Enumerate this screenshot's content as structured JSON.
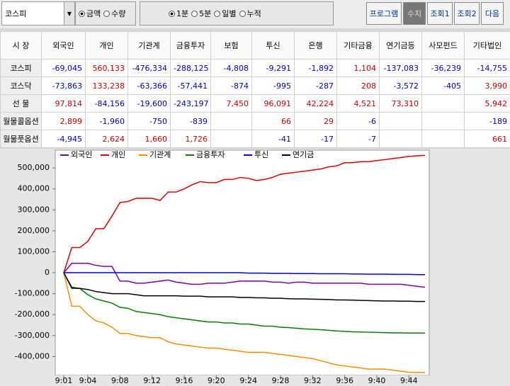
{
  "toolbar": {
    "market": "코스피",
    "unit_options": [
      "금액",
      "수량"
    ],
    "period_options": [
      "1분",
      "5분",
      "일별",
      "누적"
    ],
    "buttons": [
      "프로그램",
      "수치",
      "조회1",
      "조회2",
      "다음"
    ]
  },
  "table": {
    "header": [
      "시 장",
      "외국인",
      "개인",
      "기관계",
      "금융투자",
      "보험",
      "투신",
      "은행",
      "기타금융",
      "연기금등",
      "사모펀드",
      "기타법인"
    ],
    "rows": [
      [
        "코스피",
        "-69,045",
        "560,133",
        "-476,334",
        "-288,125",
        "-4,808",
        "-9,291",
        "-1,892",
        "1,104",
        "-137,083",
        "-36,239",
        "-14,755"
      ],
      [
        "코스닥",
        "-73,863",
        "133,238",
        "-63,366",
        "-57,441",
        "-874",
        "-995",
        "-287",
        "208",
        "-3,572",
        "-405",
        "3,990"
      ],
      [
        "선 물",
        "97,814",
        "-84,156",
        "-19,600",
        "-243,197",
        "7,450",
        "96,091",
        "42,224",
        "4,521",
        "73,310",
        null,
        "5,942"
      ],
      [
        "월물콜옵션",
        "2,899",
        "-1,960",
        "-750",
        "-839",
        null,
        "66",
        "29",
        "-6",
        null,
        null,
        "-189"
      ],
      [
        "월물풋옵션",
        "-4,945",
        "2,624",
        "1,660",
        "1,726",
        null,
        "-41",
        "-17",
        "-7",
        null,
        null,
        "661"
      ]
    ]
  },
  "chart_data": {
    "type": "line",
    "categories": [
      "9:01",
      null,
      null,
      "9:04",
      null,
      null,
      null,
      "9:08",
      null,
      null,
      null,
      "9:12",
      null,
      null,
      null,
      "9:16",
      null,
      null,
      null,
      "9:20",
      null,
      null,
      null,
      "9:24",
      null,
      null,
      null,
      "9:28",
      null,
      null,
      null,
      "9:32",
      null,
      null,
      null,
      "9:36",
      null,
      null,
      null,
      "9:40",
      null,
      null,
      null,
      "9:44",
      null,
      null
    ],
    "ylim": [
      -490000,
      585000
    ],
    "yticks": [
      {
        "value": -400000,
        "label": "-400,000"
      },
      {
        "value": -300000,
        "label": "-300,000"
      },
      {
        "value": -200000,
        "label": "-200,000"
      },
      {
        "value": -100000,
        "label": "-100,000"
      },
      0,
      {
        "value": 100000,
        "label": "100,000"
      },
      {
        "value": 200000,
        "label": "200,000"
      },
      {
        "value": 300000,
        "label": "300,000"
      },
      {
        "value": 400000,
        "label": "400,000"
      },
      {
        "value": 500000,
        "label": "500,000"
      }
    ],
    "series": [
      {
        "name": "외국인",
        "color": "#8000a8",
        "values": [
          0,
          45000,
          45000,
          45000,
          35000,
          30000,
          30000,
          -40000,
          -40000,
          -50000,
          -50000,
          -45000,
          -40000,
          -35000,
          -45000,
          -50000,
          -55000,
          -55000,
          -50000,
          -50000,
          -50000,
          -45000,
          -40000,
          -40000,
          -40000,
          -40000,
          -45000,
          -45000,
          -50000,
          -45000,
          -45000,
          -50000,
          -50000,
          -50000,
          -50000,
          -50000,
          -50000,
          -50000,
          -55000,
          -55000,
          -55000,
          -55000,
          -55000,
          -60000,
          -65000,
          -69000
        ]
      },
      {
        "name": "개인",
        "color": "#e00000",
        "values": [
          0,
          120000,
          120000,
          150000,
          210000,
          210000,
          270000,
          335000,
          340000,
          355000,
          355000,
          355000,
          345000,
          385000,
          385000,
          400000,
          420000,
          435000,
          430000,
          430000,
          445000,
          445000,
          455000,
          450000,
          440000,
          445000,
          455000,
          470000,
          475000,
          480000,
          485000,
          490000,
          495000,
          505000,
          510000,
          525000,
          525000,
          530000,
          530000,
          535000,
          540000,
          545000,
          550000,
          555000,
          558000,
          560000
        ]
      },
      {
        "name": "기관계",
        "color": "#ff8c00",
        "values": [
          0,
          -160000,
          -160000,
          -200000,
          -230000,
          -240000,
          -260000,
          -290000,
          -290000,
          -300000,
          -305000,
          -310000,
          -310000,
          -330000,
          -340000,
          -345000,
          -350000,
          -355000,
          -360000,
          -360000,
          -365000,
          -370000,
          -375000,
          -380000,
          -380000,
          -380000,
          -385000,
          -390000,
          -395000,
          -400000,
          -405000,
          -410000,
          -420000,
          -430000,
          -440000,
          -445000,
          -450000,
          -455000,
          -460000,
          -460000,
          -460000,
          -465000,
          -470000,
          -475000,
          -476000,
          -476000
        ]
      },
      {
        "name": "금융투자",
        "color": "#008000",
        "values": [
          0,
          -75000,
          -75000,
          -105000,
          -125000,
          -135000,
          -145000,
          -165000,
          -170000,
          -185000,
          -190000,
          -195000,
          -200000,
          -210000,
          -215000,
          -220000,
          -225000,
          -230000,
          -235000,
          -235000,
          -240000,
          -240000,
          -245000,
          -245000,
          -250000,
          -255000,
          -255000,
          -260000,
          -262000,
          -265000,
          -268000,
          -270000,
          -272000,
          -275000,
          -278000,
          -280000,
          -282000,
          -283000,
          -284000,
          -285000,
          -286000,
          -287000,
          -287000,
          -288000,
          -288000,
          -288000
        ]
      },
      {
        "name": "투신",
        "color": "#0000e0",
        "values": [
          0,
          0,
          0,
          0,
          0,
          0,
          0,
          0,
          0,
          0,
          0,
          0,
          0,
          0,
          0,
          0,
          0,
          0,
          0,
          0,
          0,
          0,
          0,
          -2000,
          -2000,
          -2000,
          -3000,
          -3000,
          -3000,
          -4000,
          -4000,
          -4000,
          -5000,
          -5000,
          -5000,
          -5000,
          -6000,
          -6000,
          -7000,
          -7000,
          -7000,
          -8000,
          -8000,
          -8000,
          -9000,
          -9000
        ]
      },
      {
        "name": "연기금",
        "color": "#000000",
        "values": [
          0,
          -70000,
          -75000,
          -80000,
          -90000,
          -95000,
          -100000,
          -100000,
          -100000,
          -105000,
          -110000,
          -110000,
          -110000,
          -110000,
          -110000,
          -112000,
          -112000,
          -112000,
          -115000,
          -115000,
          -115000,
          -115000,
          -118000,
          -118000,
          -120000,
          -120000,
          -122000,
          -122000,
          -124000,
          -125000,
          -125000,
          -126000,
          -127000,
          -128000,
          -130000,
          -130000,
          -131000,
          -132000,
          -133000,
          -134000,
          -135000,
          -135000,
          -136000,
          -136000,
          -137000,
          -137000
        ]
      }
    ]
  }
}
